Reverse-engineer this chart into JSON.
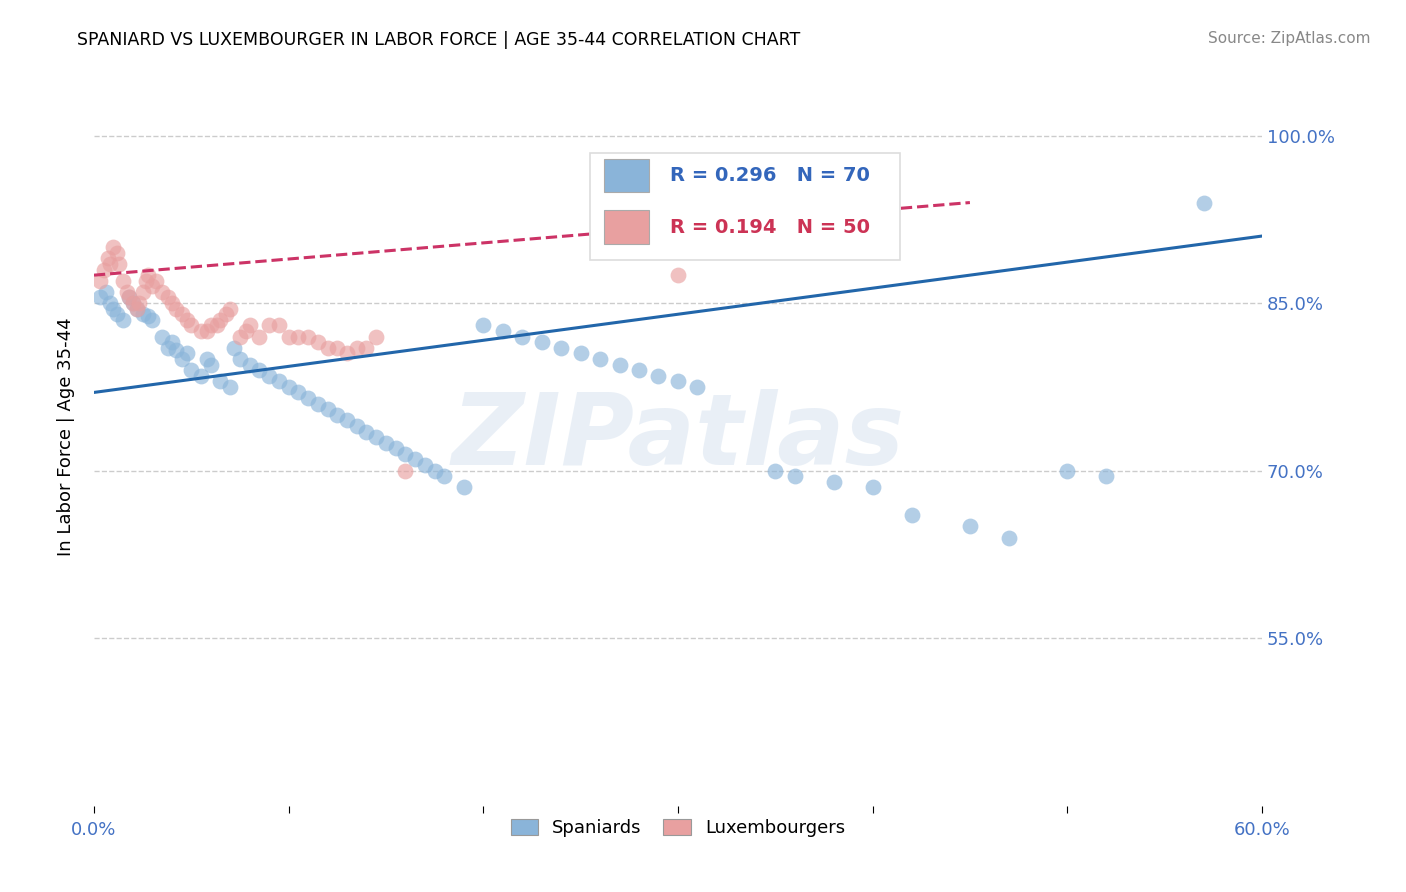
{
  "title": "SPANIARD VS LUXEMBOURGER IN LABOR FORCE | AGE 35-44 CORRELATION CHART",
  "source": "Source: ZipAtlas.com",
  "ylabel": "In Labor Force | Age 35-44",
  "xlim": [
    0.0,
    0.6
  ],
  "ylim": [
    0.4,
    1.06
  ],
  "xticks": [
    0.0,
    0.1,
    0.2,
    0.3,
    0.4,
    0.5,
    0.6
  ],
  "xticklabels": [
    "0.0%",
    "",
    "",
    "",
    "",
    "",
    "60.0%"
  ],
  "yticks": [
    0.55,
    0.7,
    0.85,
    1.0
  ],
  "yticklabels": [
    "55.0%",
    "70.0%",
    "85.0%",
    "100.0%"
  ],
  "blue_color": "#8ab4d9",
  "pink_color": "#e8a0a0",
  "legend_blue_label": "Spaniards",
  "legend_pink_label": "Luxembourgers",
  "legend_blue_r": "R = 0.296",
  "legend_blue_n": "N = 70",
  "legend_pink_r": "R = 0.194",
  "legend_pink_n": "N = 50",
  "watermark": "ZIPatlas",
  "blue_scatter_x": [
    0.003,
    0.006,
    0.008,
    0.01,
    0.012,
    0.015,
    0.018,
    0.02,
    0.022,
    0.025,
    0.028,
    0.03,
    0.035,
    0.038,
    0.04,
    0.042,
    0.045,
    0.048,
    0.05,
    0.055,
    0.058,
    0.06,
    0.065,
    0.07,
    0.072,
    0.075,
    0.08,
    0.085,
    0.09,
    0.095,
    0.1,
    0.105,
    0.11,
    0.115,
    0.12,
    0.125,
    0.13,
    0.135,
    0.14,
    0.145,
    0.15,
    0.155,
    0.16,
    0.165,
    0.17,
    0.175,
    0.18,
    0.19,
    0.2,
    0.21,
    0.22,
    0.23,
    0.24,
    0.25,
    0.26,
    0.27,
    0.28,
    0.29,
    0.3,
    0.31,
    0.35,
    0.36,
    0.38,
    0.4,
    0.42,
    0.45,
    0.47,
    0.5,
    0.52,
    0.57
  ],
  "blue_scatter_y": [
    0.855,
    0.86,
    0.85,
    0.845,
    0.84,
    0.835,
    0.855,
    0.85,
    0.845,
    0.84,
    0.838,
    0.835,
    0.82,
    0.81,
    0.815,
    0.808,
    0.8,
    0.805,
    0.79,
    0.785,
    0.8,
    0.795,
    0.78,
    0.775,
    0.81,
    0.8,
    0.795,
    0.79,
    0.785,
    0.78,
    0.775,
    0.77,
    0.765,
    0.76,
    0.755,
    0.75,
    0.745,
    0.74,
    0.735,
    0.73,
    0.725,
    0.72,
    0.715,
    0.71,
    0.705,
    0.7,
    0.695,
    0.685,
    0.83,
    0.825,
    0.82,
    0.815,
    0.81,
    0.805,
    0.8,
    0.795,
    0.79,
    0.785,
    0.78,
    0.775,
    0.7,
    0.695,
    0.69,
    0.685,
    0.66,
    0.65,
    0.64,
    0.7,
    0.695,
    0.94
  ],
  "pink_scatter_x": [
    0.003,
    0.005,
    0.007,
    0.008,
    0.01,
    0.012,
    0.013,
    0.015,
    0.017,
    0.018,
    0.02,
    0.022,
    0.023,
    0.025,
    0.027,
    0.028,
    0.03,
    0.032,
    0.035,
    0.038,
    0.04,
    0.042,
    0.045,
    0.048,
    0.05,
    0.055,
    0.058,
    0.06,
    0.063,
    0.065,
    0.068,
    0.07,
    0.075,
    0.078,
    0.08,
    0.085,
    0.09,
    0.095,
    0.1,
    0.105,
    0.11,
    0.115,
    0.12,
    0.125,
    0.13,
    0.135,
    0.14,
    0.145,
    0.16,
    0.3
  ],
  "pink_scatter_y": [
    0.87,
    0.88,
    0.89,
    0.885,
    0.9,
    0.895,
    0.885,
    0.87,
    0.86,
    0.855,
    0.85,
    0.845,
    0.85,
    0.86,
    0.87,
    0.875,
    0.865,
    0.87,
    0.86,
    0.855,
    0.85,
    0.845,
    0.84,
    0.835,
    0.83,
    0.825,
    0.825,
    0.83,
    0.83,
    0.835,
    0.84,
    0.845,
    0.82,
    0.825,
    0.83,
    0.82,
    0.83,
    0.83,
    0.82,
    0.82,
    0.82,
    0.815,
    0.81,
    0.81,
    0.805,
    0.81,
    0.81,
    0.82,
    0.7,
    0.875
  ],
  "blue_trend_x": [
    0.0,
    0.6
  ],
  "blue_trend_y": [
    0.77,
    0.91
  ],
  "pink_trend_x": [
    0.0,
    0.45
  ],
  "pink_trend_y": [
    0.875,
    0.94
  ],
  "tick_color": "#4472c4",
  "grid_color": "#cccccc",
  "blue_line_color": "#2266aa",
  "pink_line_color": "#cc3366"
}
